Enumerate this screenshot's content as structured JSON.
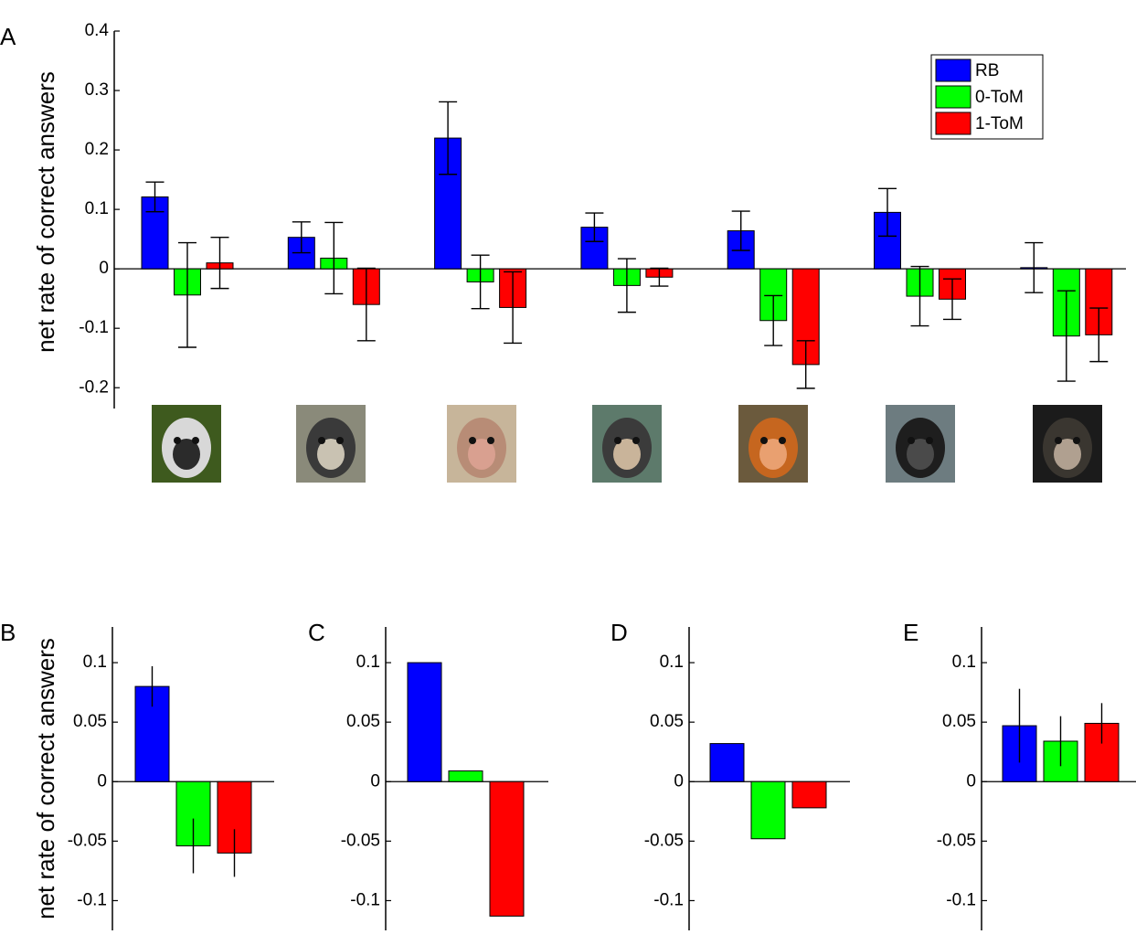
{
  "colors": {
    "RB": "#0000ff",
    "0-ToM": "#00ff00",
    "1-ToM": "#ff0000"
  },
  "chart_data": [
    {
      "panel": "A",
      "type": "bar",
      "ylabel": "net rate of correct answers",
      "ylim": [
        -0.235,
        0.4
      ],
      "yticks": [
        -0.2,
        -0.1,
        0,
        0.1,
        0.2,
        0.3,
        0.4
      ],
      "ytick_labels": [
        "-0.2",
        "-0.1",
        "0",
        "0.1",
        "0.2",
        "0.3",
        "0.4"
      ],
      "legend": {
        "placement": "top-right",
        "entries": [
          "RB",
          "0-ToM",
          "1-ToM"
        ]
      },
      "categories": [
        "lemur-photo",
        "lion-tailed-macaque-photo",
        "macaque-photo",
        "monkey-photo",
        "orangutan-photo",
        "gorilla-photo",
        "chimpanzee-photo"
      ],
      "series": [
        {
          "name": "RB",
          "values": [
            0.121,
            0.053,
            0.22,
            0.07,
            0.064,
            0.095,
            0.002
          ],
          "errors": [
            0.025,
            0.026,
            0.061,
            0.024,
            0.033,
            0.04,
            0.042
          ]
        },
        {
          "name": "0-ToM",
          "values": [
            -0.044,
            0.018,
            -0.022,
            -0.028,
            -0.087,
            -0.046,
            -0.113
          ],
          "errors": [
            0.088,
            0.06,
            0.045,
            0.045,
            0.042,
            0.05,
            0.076
          ]
        },
        {
          "name": "1-ToM",
          "values": [
            0.01,
            -0.06,
            -0.065,
            -0.014,
            -0.161,
            -0.051,
            -0.111
          ],
          "errors": [
            0.043,
            0.061,
            0.06,
            0.015,
            0.04,
            0.034,
            0.045
          ]
        }
      ]
    },
    {
      "panel": "B",
      "type": "bar",
      "ylabel": "net rate of correct answers",
      "ylim": [
        -0.125,
        0.13
      ],
      "yticks": [
        -0.1,
        -0.05,
        0,
        0.05,
        0.1
      ],
      "ytick_labels": [
        "-0.1",
        "-0.05",
        "0",
        "0.05",
        "0.1"
      ],
      "series": [
        {
          "name": "RB",
          "values": [
            0.08
          ],
          "errors": [
            0.017
          ]
        },
        {
          "name": "0-ToM",
          "values": [
            -0.054
          ],
          "errors": [
            0.023
          ]
        },
        {
          "name": "1-ToM",
          "values": [
            -0.06
          ],
          "errors": [
            0.02
          ]
        }
      ]
    },
    {
      "panel": "C",
      "type": "bar",
      "ylim": [
        -0.125,
        0.13
      ],
      "yticks": [
        -0.1,
        -0.05,
        0,
        0.05,
        0.1
      ],
      "ytick_labels": [
        "-0.1",
        "-0.05",
        "0",
        "0.05",
        "0.1"
      ],
      "series": [
        {
          "name": "RB",
          "values": [
            0.1
          ],
          "errors": [
            0
          ]
        },
        {
          "name": "0-ToM",
          "values": [
            0.009
          ],
          "errors": [
            0
          ]
        },
        {
          "name": "1-ToM",
          "values": [
            -0.113
          ],
          "errors": [
            0
          ]
        }
      ]
    },
    {
      "panel": "D",
      "type": "bar",
      "ylim": [
        -0.125,
        0.13
      ],
      "yticks": [
        -0.1,
        -0.05,
        0,
        0.05,
        0.1
      ],
      "ytick_labels": [
        "-0.1",
        "-0.05",
        "0",
        "0.05",
        "0.1"
      ],
      "series": [
        {
          "name": "RB",
          "values": [
            0.032
          ],
          "errors": [
            0
          ]
        },
        {
          "name": "0-ToM",
          "values": [
            -0.048
          ],
          "errors": [
            0
          ]
        },
        {
          "name": "1-ToM",
          "values": [
            -0.022
          ],
          "errors": [
            0
          ]
        }
      ]
    },
    {
      "panel": "E",
      "type": "bar",
      "ylim": [
        -0.125,
        0.13
      ],
      "yticks": [
        -0.1,
        -0.05,
        0,
        0.05,
        0.1
      ],
      "ytick_labels": [
        "-0.1",
        "-0.05",
        "0",
        "0.05",
        "0.1"
      ],
      "series": [
        {
          "name": "RB",
          "values": [
            0.047
          ],
          "errors": [
            0.031
          ]
        },
        {
          "name": "0-ToM",
          "values": [
            0.034
          ],
          "errors": [
            0.021
          ]
        },
        {
          "name": "1-ToM",
          "values": [
            0.049
          ],
          "errors": [
            0.017
          ]
        }
      ]
    }
  ]
}
